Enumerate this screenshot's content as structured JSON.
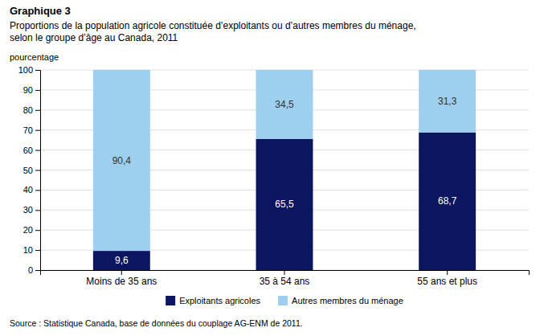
{
  "chart_data": {
    "type": "bar",
    "stacked": true,
    "title": "Graphique 3",
    "subtitle": "Proportions de la population agricole constituée d’exploitants ou d’autres membres du ménage, selon le groupe d’âge au Canada, 2011",
    "ylabel": "pourcentage",
    "categories": [
      "Moins de 35 ans",
      "35 à 54 ans",
      "55 ans et plus"
    ],
    "series": [
      {
        "name": "Exploitants agricoles",
        "color": "#0B1560",
        "values": [
          9.6,
          65.5,
          68.7
        ],
        "value_labels": [
          "9,6",
          "65,5",
          "68,7"
        ]
      },
      {
        "name": "Autres membres du ménage",
        "color": "#9ECFEE",
        "values": [
          90.4,
          34.5,
          31.3
        ],
        "value_labels": [
          "90,4",
          "34,5",
          "31,3"
        ]
      }
    ],
    "ylim": [
      0,
      100
    ],
    "yticks": [
      0,
      10,
      20,
      30,
      40,
      50,
      60,
      70,
      80,
      90,
      100
    ],
    "grid": true,
    "legend": "bottom",
    "data_labels": true,
    "annotations": [
      "Source : Statistique Canada, base de données du couplage AG-ENM de 2011."
    ]
  }
}
